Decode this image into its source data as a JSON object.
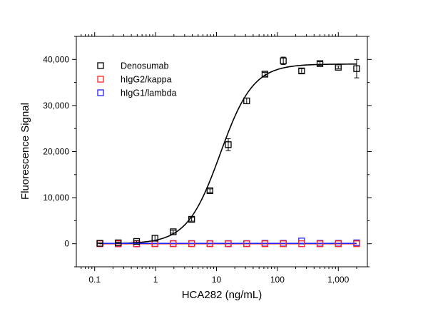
{
  "chart_data": {
    "type": "scatter",
    "xlabel": "HCA282 (ng/mL)",
    "ylabel": "Fluorescence Signal",
    "xscale": "log",
    "xlim": [
      0.05,
      3000
    ],
    "ylim": [
      -5000,
      45000
    ],
    "xticks": [
      0.1,
      1,
      10,
      100,
      1000
    ],
    "xtick_labels": [
      "0.1",
      "1",
      "10",
      "100",
      "1,000"
    ],
    "yticks": [
      0,
      10000,
      20000,
      30000,
      40000
    ],
    "ytick_labels": [
      "0",
      "10,000",
      "20,000",
      "30,000",
      "40,000"
    ],
    "grid": false,
    "legend_position": "top-left",
    "series": [
      {
        "name": "Denosumab",
        "color": "#000000",
        "marker": "open-square",
        "x": [
          0.122,
          0.244,
          0.488,
          0.977,
          1.95,
          3.91,
          7.81,
          15.6,
          31.3,
          62.5,
          125,
          250,
          500,
          1000,
          2000
        ],
        "y": [
          100,
          200,
          500,
          1200,
          2600,
          5300,
          11500,
          21500,
          31000,
          36800,
          39700,
          37500,
          39100,
          38300,
          38000
        ],
        "err": [
          100,
          100,
          200,
          600,
          300,
          400,
          400,
          1300,
          600,
          400,
          800,
          500,
          400,
          300,
          2000
        ],
        "fit": {
          "model": "4PL",
          "bottom": 0,
          "top": 39000,
          "ec50": 11.5,
          "hill": 1.6
        }
      },
      {
        "name": "hIgG2/kappa",
        "color": "#ff2020",
        "marker": "open-square",
        "x": [
          0.122,
          0.244,
          0.488,
          0.977,
          1.95,
          3.91,
          7.81,
          15.6,
          31.3,
          62.5,
          125,
          250,
          500,
          1000,
          2000
        ],
        "y": [
          0,
          0,
          0,
          0,
          0,
          0,
          0,
          0,
          0,
          0,
          0,
          0,
          0,
          0,
          0
        ],
        "fit": {
          "model": "line",
          "value": 0
        }
      },
      {
        "name": "hIgG1/lambda",
        "color": "#2020ff",
        "marker": "open-square",
        "x": [
          0.122,
          0.244,
          0.488,
          0.977,
          1.95,
          3.91,
          7.81,
          15.6,
          31.3,
          62.5,
          125,
          250,
          500,
          1000,
          2000
        ],
        "y": [
          50,
          0,
          0,
          50,
          50,
          50,
          50,
          50,
          50,
          100,
          100,
          600,
          100,
          100,
          200
        ],
        "fit": {
          "model": "line",
          "value": 80
        }
      }
    ]
  }
}
